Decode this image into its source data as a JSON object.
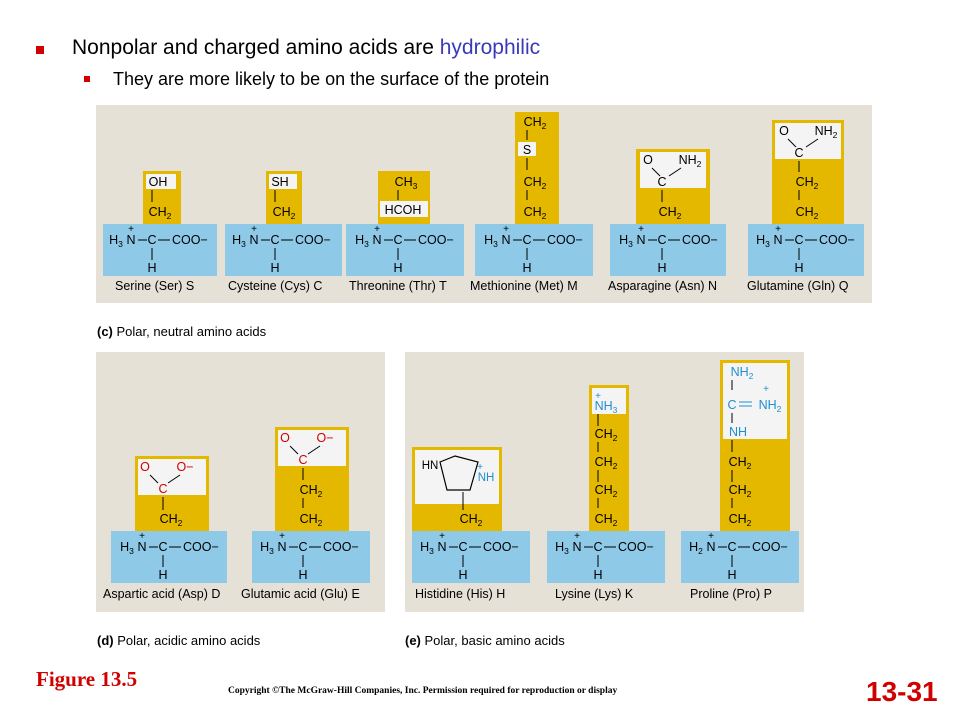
{
  "bullets": {
    "line1_prefix": "Nonpolar and charged amino acids are ",
    "line1_highlight": "hydrophilic",
    "line2": "They are more likely to be on the surface of the protein"
  },
  "panels": {
    "c_label_letter": "(c)",
    "c_label_text": "Polar, neutral amino acids",
    "d_label_letter": "(d)",
    "d_label_text": "Polar, acidic amino acids",
    "e_label_letter": "(e)",
    "e_label_text": "Polar, basic amino acids"
  },
  "amino_acids": [
    {
      "name": "Serine (Ser) S"
    },
    {
      "name": "Cysteine (Cys) C"
    },
    {
      "name": "Threonine (Thr) T"
    },
    {
      "name": "Methionine (Met) M"
    },
    {
      "name": "Asparagine (Asn)  N"
    },
    {
      "name": "Glutamine (Gln) Q"
    },
    {
      "name": "Aspartic acid (Asp) D"
    },
    {
      "name": "Glutamic acid (Glu) E"
    },
    {
      "name": "Histidine (His) H"
    },
    {
      "name": "Lysine (Lys) K"
    },
    {
      "name": "Proline (Pro) P"
    }
  ],
  "backbone": {
    "amine": "H3N",
    "amine_pro": "H2N",
    "carbon": "C",
    "carboxyl": "COO−",
    "hydrogen": "H",
    "plus": "+"
  },
  "colors": {
    "panel_bg": "#e6e1d6",
    "backbone_blue": "#8ec9e8",
    "sidechain_gold": "#e5b800",
    "highlight_box": "#f4f4f4",
    "title_accent": "#3a3ab8",
    "red": "#d00000"
  },
  "footer": {
    "figure": "Figure 13.5",
    "copyright": "Copyright ©The McGraw-Hill Companies, Inc. Permission required for reproduction or display",
    "slide_number": "13-31"
  }
}
